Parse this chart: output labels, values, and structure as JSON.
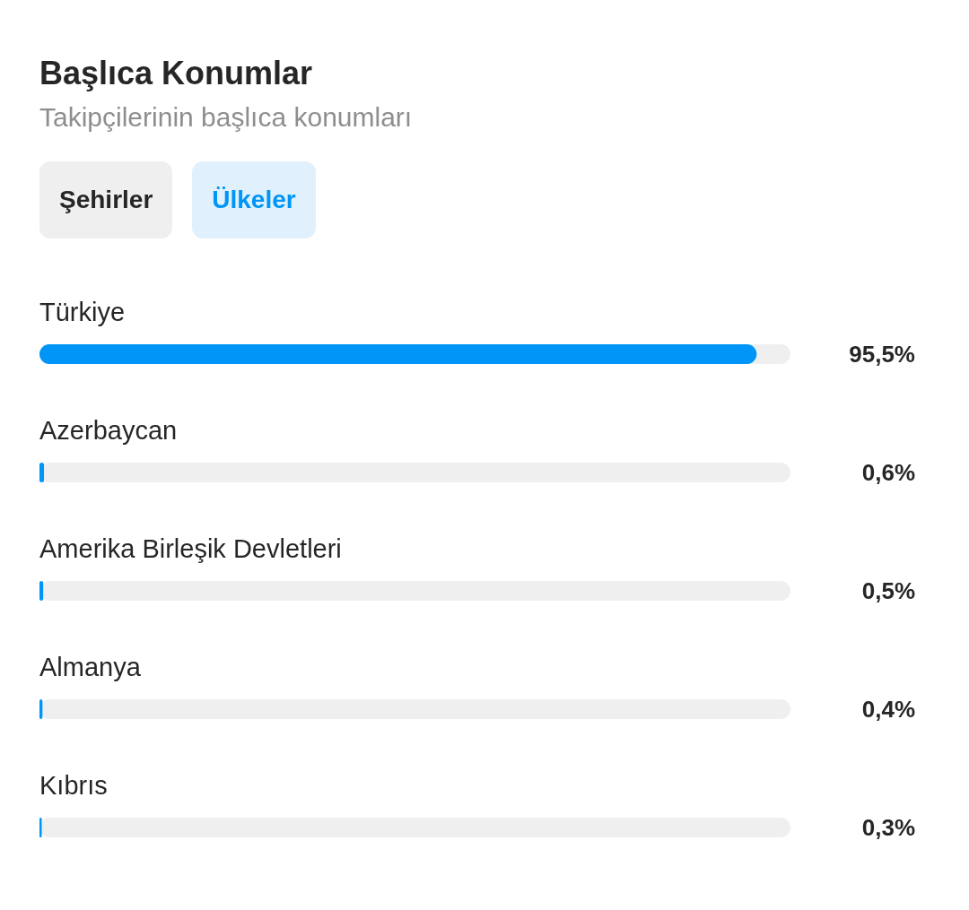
{
  "chart_data": {
    "type": "bar",
    "orientation": "horizontal",
    "title": "Başlıca Konumlar",
    "subtitle": "Takipçilerinin başlıca konumları",
    "annotations": [
      "Şehirler",
      "Ülkeler"
    ],
    "categories": [
      "Türkiye",
      "Azerbaycan",
      "Amerika Birleşik Devletleri",
      "Almanya",
      "Kıbrıs"
    ],
    "values": [
      95.5,
      0.6,
      0.5,
      0.4,
      0.3
    ],
    "value_labels": [
      "95,5%",
      "0,6%",
      "0,5%",
      "0,4%",
      "0,3%"
    ],
    "color": "#0095f6",
    "xlim": [
      0,
      100
    ],
    "legend": false,
    "grid": false
  }
}
